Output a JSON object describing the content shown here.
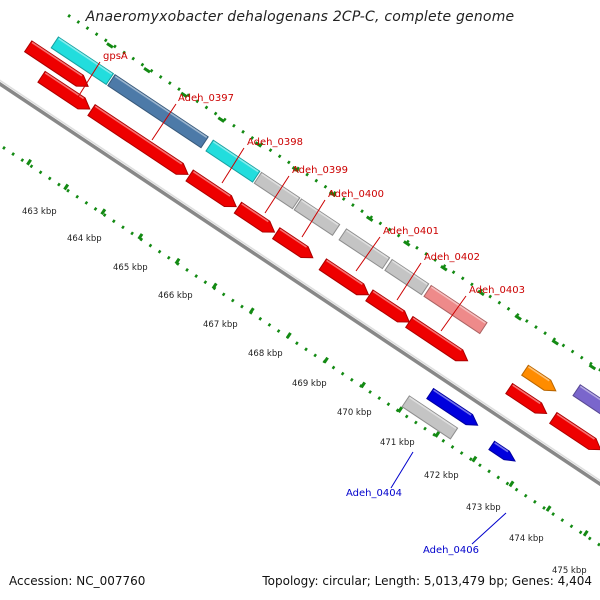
{
  "title": "Anaeromyxobacter dehalogenans 2CP-C, complete genome",
  "footer": {
    "accession": "Accession: NC_007760",
    "topology": "Topology: circular; Length: 5,013,479 bp; Genes: 4,404"
  },
  "colors": {
    "forward_label": "#cc0000",
    "reverse_label": "#0000cc",
    "tick": "#138a13",
    "backbone": "#888888"
  },
  "scale_labels": [
    "463 kbp",
    "464 kbp",
    "465 kbp",
    "466 kbp",
    "467 kbp",
    "468 kbp",
    "469 kbp",
    "470 kbp",
    "471 kbp",
    "472 kbp",
    "473 kbp",
    "474 kbp",
    "475 kbp"
  ],
  "gene_labels": [
    {
      "name": "gpsA",
      "strand": "forward"
    },
    {
      "name": "Adeh_0397",
      "strand": "forward"
    },
    {
      "name": "Adeh_0398",
      "strand": "forward"
    },
    {
      "name": "Adeh_0399",
      "strand": "forward"
    },
    {
      "name": "Adeh_0400",
      "strand": "forward"
    },
    {
      "name": "Adeh_0401",
      "strand": "forward"
    },
    {
      "name": "Adeh_0402",
      "strand": "forward"
    },
    {
      "name": "Adeh_0403",
      "strand": "forward"
    },
    {
      "name": "Adeh_0404",
      "strand": "reverse"
    },
    {
      "name": "Adeh_0406",
      "strand": "reverse"
    }
  ],
  "feature_colors": {
    "cds": "#ee0000",
    "cyan": "#22dddd",
    "steel_blue": "#4d7aa8",
    "light_gray": "#c4c4c4",
    "pink": "#ee8a8a",
    "orange": "#ff8c00",
    "blue": "#0000dd",
    "purple": "#7a66cc"
  }
}
